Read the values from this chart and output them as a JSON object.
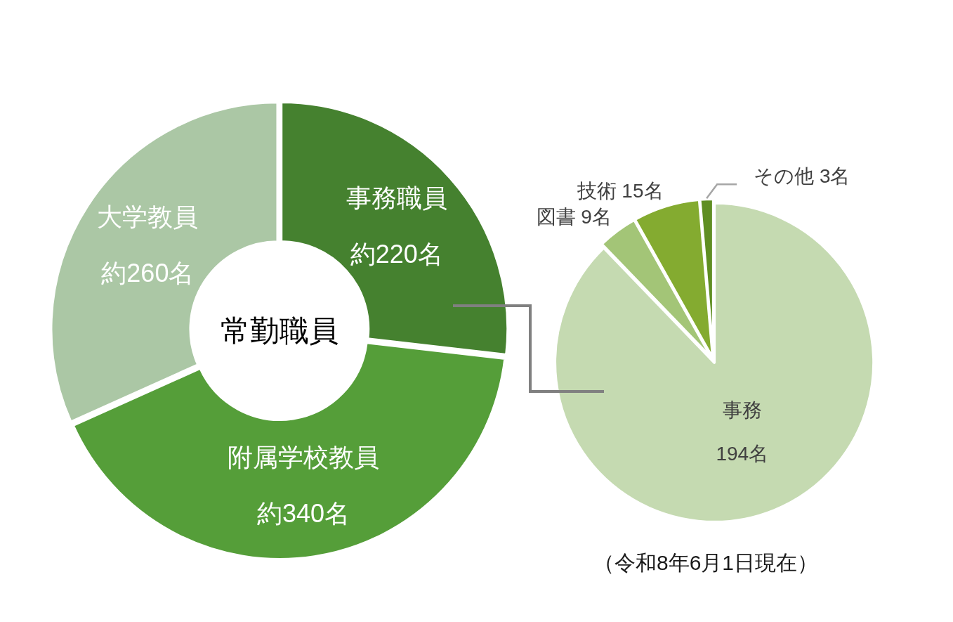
{
  "chart_data": [
    {
      "type": "donut",
      "title": "常勤職員",
      "categories": [
        "事務職員",
        "附属学校教員",
        "大学教員"
      ],
      "values": [
        220,
        340,
        260
      ],
      "value_labels": [
        "約220名",
        "約340名",
        "約260名"
      ],
      "colors": [
        "#45812f",
        "#559e39",
        "#abc7a5"
      ]
    },
    {
      "type": "pie",
      "categories": [
        "事務",
        "図書",
        "技術",
        "その他"
      ],
      "values": [
        194,
        9,
        15,
        3
      ],
      "value_labels": [
        "194名",
        "9名",
        "15名",
        "3名"
      ],
      "colors": [
        "#c5dab1",
        "#a3c577",
        "#84ab30",
        "#5f8e22"
      ],
      "annotations": [
        "（令和8年6月1日現在）"
      ]
    }
  ]
}
